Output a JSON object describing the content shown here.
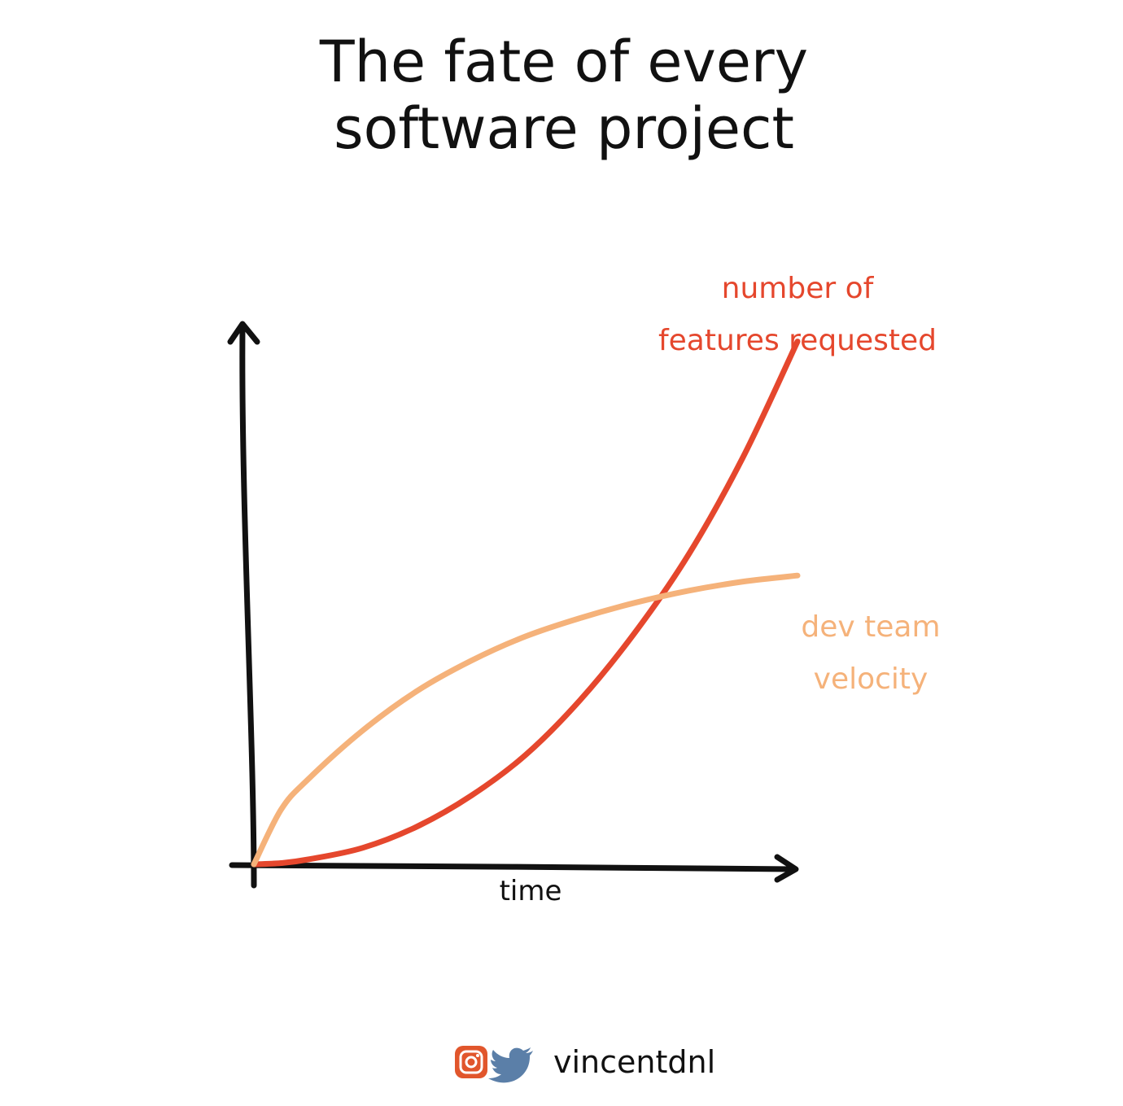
{
  "chart_data": {
    "type": "line",
    "title": [
      "The fate of every",
      "software project"
    ],
    "xlabel": "time",
    "ylabel": "",
    "xlim": [
      0,
      1
    ],
    "ylim": [
      0,
      1
    ],
    "grid": false,
    "series": [
      {
        "key": "features",
        "name": [
          "number of",
          "features requested"
        ],
        "color": "#e5472d",
        "x": [
          0,
          0.05,
          0.1,
          0.2,
          0.3,
          0.4,
          0.5,
          0.6,
          0.7,
          0.8,
          0.9,
          1.0
        ],
        "y": [
          0,
          0.002,
          0.008,
          0.027,
          0.062,
          0.113,
          0.18,
          0.27,
          0.38,
          0.51,
          0.67,
          0.86
        ]
      },
      {
        "key": "velocity",
        "name": [
          "dev team",
          "velocity"
        ],
        "color": "#f5b27a",
        "x": [
          0,
          0.05,
          0.1,
          0.2,
          0.3,
          0.4,
          0.5,
          0.6,
          0.7,
          0.8,
          0.9,
          1.0
        ],
        "y": [
          0,
          0.09,
          0.14,
          0.22,
          0.285,
          0.335,
          0.375,
          0.405,
          0.43,
          0.45,
          0.465,
          0.475
        ]
      }
    ]
  },
  "footer": {
    "handle": "vincentdnl",
    "icons": [
      "instagram-icon",
      "twitter-icon"
    ],
    "instagram_color": "#e1562c",
    "twitter_color": "#5b7fa8"
  }
}
